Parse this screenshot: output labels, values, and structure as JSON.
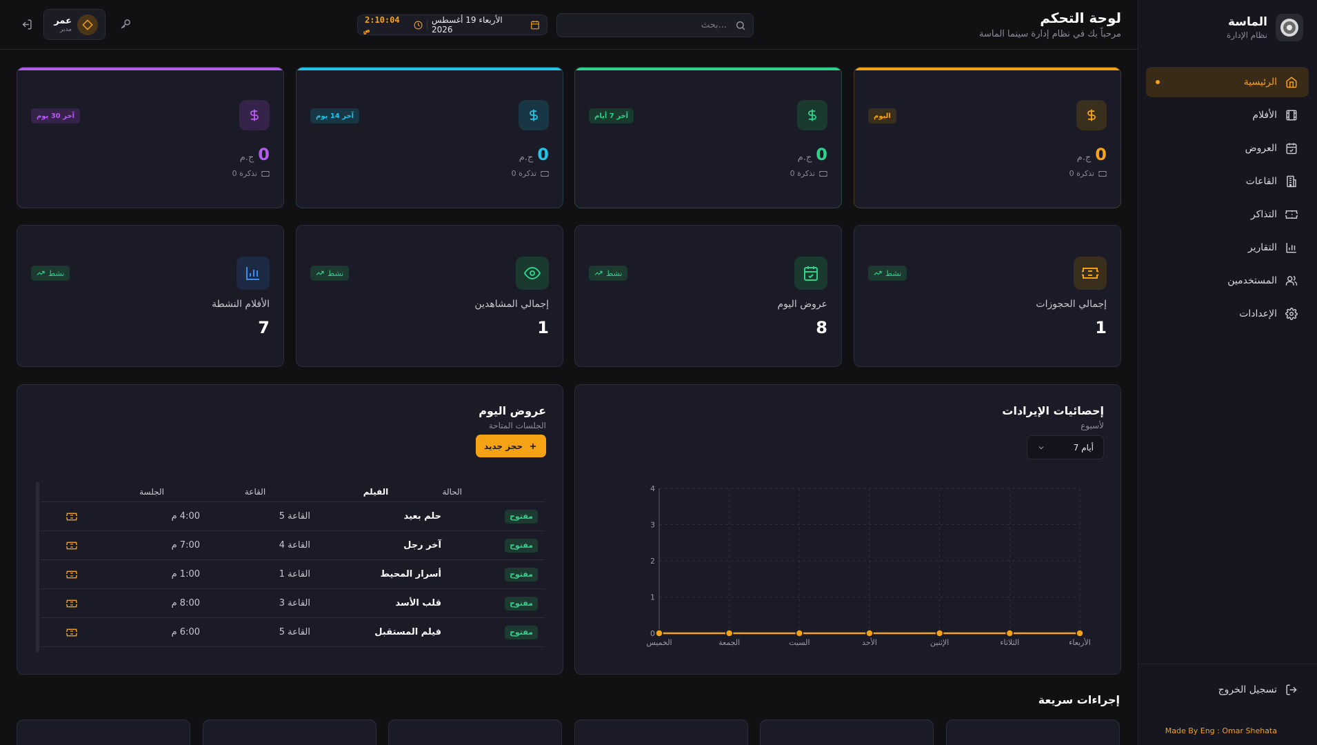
{
  "sidebar": {
    "brand_name": "الماسة",
    "brand_sub": "نظام الإدارة",
    "items": [
      {
        "label": "الرئيسية",
        "icon": "home-icon"
      },
      {
        "label": "الأفلام",
        "icon": "film-icon"
      },
      {
        "label": "العروض",
        "icon": "calendar-check-icon"
      },
      {
        "label": "القاعات",
        "icon": "building-icon"
      },
      {
        "label": "التذاكر",
        "icon": "ticket-icon"
      },
      {
        "label": "التقارير",
        "icon": "bar-chart-icon"
      },
      {
        "label": "المستخدمين",
        "icon": "users-icon"
      },
      {
        "label": "الإعدادات",
        "icon": "gear-icon"
      }
    ],
    "logout_label": "تسجيل الخروج",
    "credit": "Made By Eng : Omar Shehata"
  },
  "header": {
    "title": "لوحة التحكم",
    "subtitle": "مرحباً بك في نظام إدارة سينما الماسة",
    "search_placeholder": "بحث...",
    "date": "الأربعاء 19 أغسطس 2026",
    "time": "2:10:04 ص",
    "user_name": "عمر",
    "user_role": "مدير"
  },
  "revenue_cards": [
    {
      "badge": "اليوم",
      "amount": "0",
      "currency": "ج.م",
      "tickets": "0 تذكرة",
      "color": "#f5a315"
    },
    {
      "badge": "آخر 7 أيام",
      "amount": "0",
      "currency": "ج.م",
      "tickets": "0 تذكرة",
      "color": "#2bd48a"
    },
    {
      "badge": "آخر 14 يوم",
      "amount": "0",
      "currency": "ج.م",
      "tickets": "0 تذكرة",
      "color": "#22c3e6"
    },
    {
      "badge": "آخر 30 يوم",
      "amount": "0",
      "currency": "ج.م",
      "tickets": "0 تذكرة",
      "color": "#b45cf0"
    }
  ],
  "kpi_cards": [
    {
      "label": "إجمالي الحجوزات",
      "value": "1",
      "badge": "نشط",
      "icon": "ticket-icon",
      "color": "#f5a315"
    },
    {
      "label": "عروض اليوم",
      "value": "8",
      "badge": "نشط",
      "icon": "calendar-check-icon",
      "color": "#2bd48a"
    },
    {
      "label": "إجمالي المشاهدين",
      "value": "1",
      "badge": "نشط",
      "icon": "eye-icon",
      "color": "#2bd48a"
    },
    {
      "label": "الأفلام النشطة",
      "value": "7",
      "badge": "نشط",
      "icon": "bar-chart-icon",
      "color": "#3b8cf0"
    }
  ],
  "revenue_chart": {
    "title": "إحصائيات الإيرادات",
    "subtitle": "لأسبوع",
    "range_label": "7 أيام"
  },
  "chart_data": {
    "type": "line",
    "categories": [
      "الأربعاء",
      "الثلاثاء",
      "الإثنين",
      "الأحد",
      "السبت",
      "الجمعة",
      "الخميس"
    ],
    "values": [
      0,
      0,
      0,
      0,
      0,
      0,
      0
    ],
    "ylim": [
      0,
      4
    ],
    "yticks": [
      0,
      1,
      2,
      3,
      4
    ],
    "grid": true,
    "x_direction": "right-to-left",
    "color": "#f5a315"
  },
  "today_shows": {
    "title": "عروض اليوم",
    "subtitle": "الجلسات المتاحة",
    "new_booking_label": "حجز جديد",
    "columns": {
      "status": "الحالة",
      "film": "الفيلم",
      "hall": "القاعة",
      "session": "الجلسة"
    },
    "rows": [
      {
        "status": "مفتوح",
        "film": "حلم بعيد",
        "hall": "القاعة 5",
        "time": "4:00 م"
      },
      {
        "status": "مفتوح",
        "film": "آخر رجل",
        "hall": "القاعة 4",
        "time": "7:00 م"
      },
      {
        "status": "مفتوح",
        "film": "أسرار المحيط",
        "hall": "القاعة 1",
        "time": "1:00 م"
      },
      {
        "status": "مفتوح",
        "film": "قلب الأسد",
        "hall": "القاعة 3",
        "time": "8:00 م"
      },
      {
        "status": "مفتوح",
        "film": "فيلم المستقبل",
        "hall": "القاعة 5",
        "time": "6:00 م"
      }
    ]
  },
  "quick_actions": {
    "title": "إجراءات سريعة"
  }
}
